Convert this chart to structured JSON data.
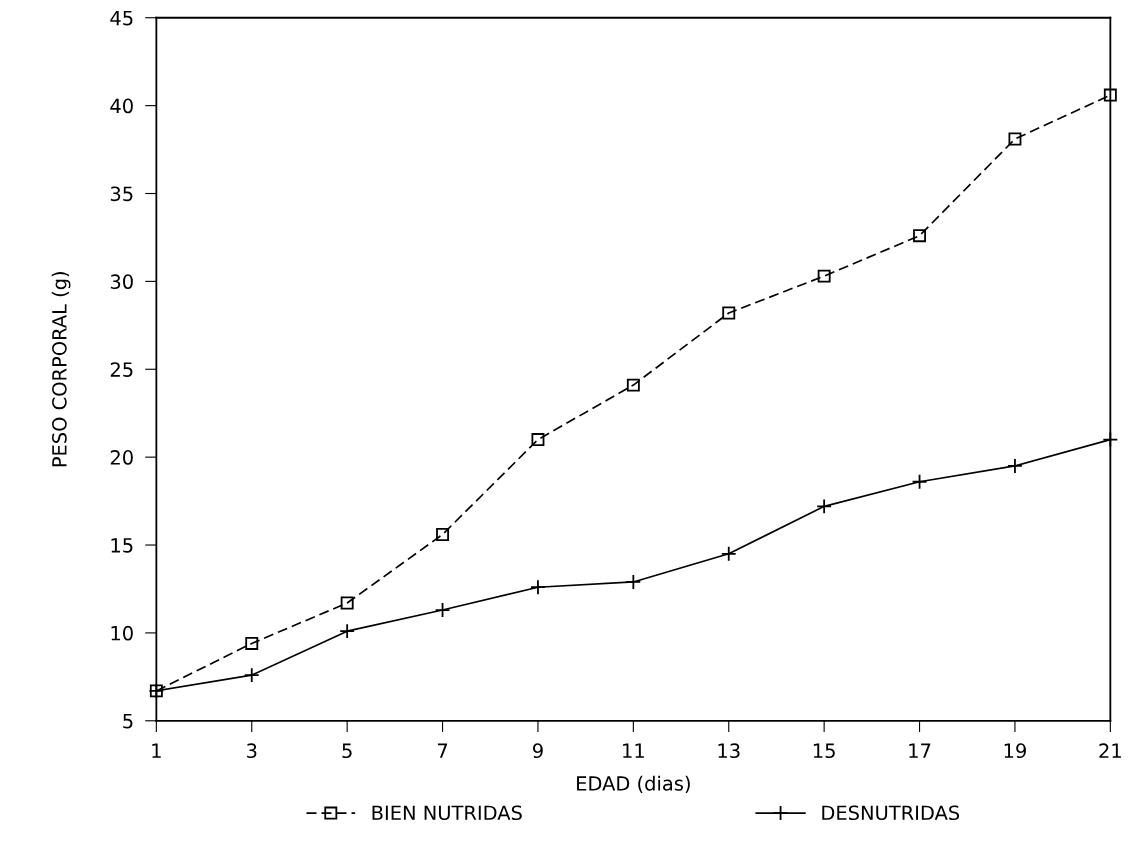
{
  "chart_data": {
    "type": "line",
    "xlabel": "EDAD (dias)",
    "ylabel": "PESO CORPORAL (g)",
    "x": [
      1,
      3,
      5,
      7,
      9,
      11,
      13,
      15,
      17,
      19,
      21
    ],
    "xlim": [
      1,
      21
    ],
    "xticks": [
      1,
      3,
      5,
      7,
      9,
      11,
      13,
      15,
      17,
      19,
      21
    ],
    "ylim": [
      5,
      45
    ],
    "yticks": [
      5,
      10,
      15,
      20,
      25,
      30,
      35,
      40,
      45
    ],
    "grid": false,
    "legend": "bottom",
    "series": [
      {
        "name": "BIEN NUTRIDAS",
        "color": "#000000",
        "marker": "square",
        "line_style": "dashed",
        "values": [
          6.7,
          9.4,
          11.7,
          15.6,
          21.0,
          24.1,
          28.2,
          30.3,
          32.6,
          38.1,
          40.6
        ]
      },
      {
        "name": "DESNUTRIDAS",
        "color": "#000000",
        "marker": "cross",
        "line_style": "solid",
        "values": [
          6.7,
          7.6,
          10.1,
          11.3,
          12.6,
          12.9,
          14.5,
          17.2,
          18.6,
          19.5,
          21.0
        ]
      }
    ]
  }
}
